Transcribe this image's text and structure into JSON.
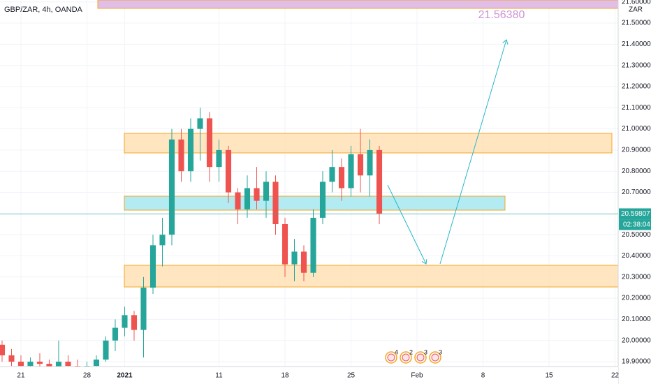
{
  "chart_data": {
    "type": "candlestick",
    "title": "GBP/ZAR, 4h, OANDA",
    "currency": "ZAR",
    "x": [
      -2,
      -1,
      0,
      1,
      2,
      3,
      4,
      5,
      6,
      7,
      8,
      9,
      10,
      11,
      12,
      13,
      14,
      15,
      16,
      17,
      18,
      19,
      20,
      21,
      22,
      23,
      24,
      25,
      26,
      27,
      28,
      29,
      30,
      31,
      32,
      33,
      34,
      35,
      36,
      37,
      38
    ],
    "open": [
      19.98,
      19.93,
      19.9,
      19.88,
      19.9,
      19.89,
      19.87,
      19.9,
      19.88,
      19.86,
      19.88,
      19.91,
      20.0,
      20.06,
      20.12,
      20.05,
      20.25,
      20.45,
      20.5,
      20.95,
      20.8,
      21.0,
      21.05,
      20.82,
      20.9,
      20.7,
      20.62,
      20.72,
      20.66,
      20.75,
      20.55,
      20.36,
      20.42,
      20.32,
      20.58,
      20.75,
      20.82,
      20.72,
      20.88,
      20.78,
      20.9
    ],
    "high": [
      20.0,
      19.96,
      19.93,
      19.92,
      19.94,
      19.91,
      20.0,
      19.93,
      19.91,
      19.9,
      19.93,
      20.02,
      20.1,
      20.16,
      20.14,
      20.3,
      20.5,
      20.58,
      21.0,
      21.0,
      21.05,
      21.1,
      21.08,
      20.95,
      20.92,
      20.72,
      20.78,
      20.82,
      20.8,
      20.78,
      20.58,
      20.48,
      20.45,
      20.62,
      20.8,
      20.9,
      20.86,
      20.92,
      21.0,
      20.95,
      20.92
    ],
    "low": [
      19.9,
      19.88,
      19.85,
      19.84,
      19.86,
      19.85,
      19.85,
      19.86,
      19.84,
      19.82,
      19.86,
      19.9,
      19.95,
      20.02,
      20.0,
      19.92,
      20.22,
      20.35,
      20.45,
      20.75,
      20.75,
      20.85,
      20.75,
      20.75,
      20.65,
      20.55,
      20.58,
      20.62,
      20.58,
      20.5,
      20.3,
      20.28,
      20.28,
      20.3,
      20.55,
      20.7,
      20.66,
      20.68,
      20.7,
      20.68,
      20.55
    ],
    "close": [
      19.93,
      19.9,
      19.88,
      19.9,
      19.89,
      19.87,
      19.9,
      19.88,
      19.86,
      19.88,
      19.91,
      20.0,
      20.06,
      20.12,
      20.05,
      20.25,
      20.45,
      20.5,
      20.95,
      20.8,
      21.0,
      21.05,
      20.82,
      20.9,
      20.7,
      20.62,
      20.72,
      20.66,
      20.75,
      20.55,
      20.36,
      20.42,
      20.32,
      20.58,
      20.75,
      20.82,
      20.72,
      20.88,
      20.78,
      20.9,
      20.6
    ],
    "up_color": "#26a69a",
    "down_color": "#ef5350",
    "xlim": [
      -2.22,
      63.33
    ],
    "xticks": [
      {
        "value": 0,
        "label": "21"
      },
      {
        "value": 7,
        "label": "28"
      },
      {
        "value": 11,
        "label": "2021"
      },
      {
        "value": 21,
        "label": "11"
      },
      {
        "value": 28,
        "label": "18"
      },
      {
        "value": 35,
        "label": "25"
      },
      {
        "value": 42,
        "label": "Feb"
      },
      {
        "value": 49,
        "label": "8"
      },
      {
        "value": 56,
        "label": "15"
      },
      {
        "value": 63,
        "label": "22"
      }
    ],
    "ylim": [
      19.877,
      21.609
    ],
    "yticks": [
      {
        "value": 19.9,
        "label": "19.90000"
      },
      {
        "value": 20.0,
        "label": "20.00000"
      },
      {
        "value": 20.1,
        "label": "20.10000"
      },
      {
        "value": 20.2,
        "label": "20.20000"
      },
      {
        "value": 20.3,
        "label": "20.30000"
      },
      {
        "value": 20.4,
        "label": "20.40000"
      },
      {
        "value": 20.5,
        "label": "20.50000"
      },
      {
        "value": 20.6,
        "label": "20.60000"
      },
      {
        "value": 20.7,
        "label": "20.70000"
      },
      {
        "value": 20.8,
        "label": "20.80000"
      },
      {
        "value": 20.9,
        "label": "20.90000"
      },
      {
        "value": 21.0,
        "label": "21.00000"
      },
      {
        "value": 21.1,
        "label": "21.10000"
      },
      {
        "value": 21.2,
        "label": "21.20000"
      },
      {
        "value": 21.3,
        "label": "21.30000"
      },
      {
        "value": 21.4,
        "label": "21.40000"
      },
      {
        "value": 21.5,
        "label": "21.50000"
      },
      {
        "value": 21.6,
        "label": "21.60000"
      }
    ],
    "last_price": 20.59807,
    "countdown": "02:38:04",
    "target_label": "21.56380",
    "events": [
      "4",
      "2",
      "3",
      "3"
    ]
  }
}
